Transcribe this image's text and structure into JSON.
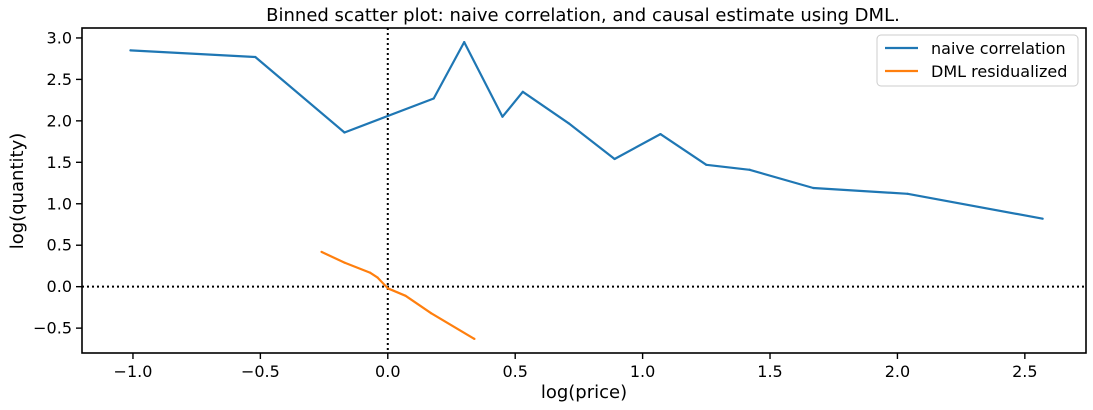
{
  "chart_data": {
    "type": "line",
    "title": "Binned scatter plot: naive correlation, and causal estimate using DML.",
    "xlabel": "log(price)",
    "ylabel": "log(quantity)",
    "xlim": [
      -1.2,
      2.74
    ],
    "ylim": [
      -0.8,
      3.12
    ],
    "xticks": [
      -1.0,
      -0.5,
      0.0,
      0.5,
      1.0,
      1.5,
      2.0,
      2.5
    ],
    "xtick_labels": [
      "−1.0",
      "−0.5",
      "0.0",
      "0.5",
      "1.0",
      "1.5",
      "2.0",
      "2.5"
    ],
    "yticks": [
      -0.5,
      0.0,
      0.5,
      1.0,
      1.5,
      2.0,
      2.5,
      3.0
    ],
    "ytick_labels": [
      "−0.5",
      "0.0",
      "0.5",
      "1.0",
      "1.5",
      "2.0",
      "2.5",
      "3.0"
    ],
    "grid": false,
    "legend_position": "top-right",
    "reference_lines": [
      {
        "orientation": "vertical",
        "value": 0.0,
        "style": "dotted",
        "color": "#000000"
      },
      {
        "orientation": "horizontal",
        "value": 0.0,
        "style": "dotted",
        "color": "#000000"
      }
    ],
    "series": [
      {
        "name": "naive correlation",
        "color": "#1f77b4",
        "x": [
          -1.01,
          -0.52,
          -0.17,
          0.18,
          0.3,
          0.45,
          0.53,
          0.71,
          0.89,
          1.07,
          1.25,
          1.42,
          1.67,
          2.04,
          2.57
        ],
        "y": [
          2.85,
          2.77,
          1.86,
          2.27,
          2.95,
          2.05,
          2.35,
          1.97,
          1.54,
          1.84,
          1.47,
          1.41,
          1.19,
          1.12,
          0.82
        ]
      },
      {
        "name": "DML residualized",
        "color": "#ff7f0e",
        "x": [
          -0.26,
          -0.17,
          -0.07,
          -0.04,
          0.0,
          0.07,
          0.17,
          0.34
        ],
        "y": [
          0.42,
          0.29,
          0.17,
          0.11,
          -0.02,
          -0.11,
          -0.32,
          -0.63
        ]
      }
    ]
  }
}
